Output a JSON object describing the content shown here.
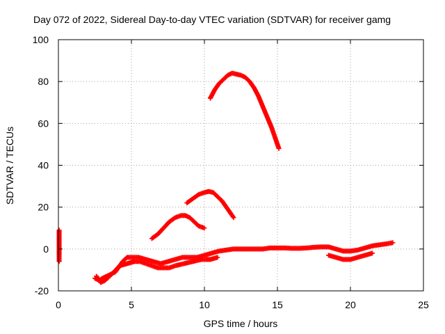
{
  "chart_data": {
    "type": "scatter",
    "title": "Day 072 of 2022, Sidereal Day-to-day VTEC variation (SDTVAR) for receiver gamg",
    "xlabel": "GPS time / hours",
    "ylabel": "SDTVAR / TECUs",
    "xlim": [
      0,
      25
    ],
    "ylim": [
      -20,
      100
    ],
    "xticks": [
      0,
      5,
      10,
      15,
      20,
      25
    ],
    "yticks": [
      -20,
      0,
      20,
      40,
      60,
      80,
      100
    ],
    "grid": true,
    "marker": "plus",
    "colors": {
      "series": "#ff0000",
      "grid": "#a0a0a0",
      "frame": "#000000"
    },
    "series": [
      {
        "name": "start-points",
        "x": [
          0.05,
          0.05,
          0.05,
          0.05
        ],
        "y": [
          9,
          -4,
          -5,
          -6
        ]
      },
      {
        "name": "arc-main-low",
        "x": [
          2.5,
          2.8,
          3.0,
          3.3,
          3.6,
          3.9,
          4.1,
          4.4,
          4.7,
          5.0,
          5.5,
          6.0,
          6.5,
          7.0,
          7.5,
          8.0,
          8.5,
          9.0,
          9.5,
          10.0,
          10.5,
          11.0,
          11.5,
          12.0,
          12.5,
          13.0,
          13.5,
          14.0,
          14.5,
          15.0,
          15.5,
          16.0,
          16.5,
          17.0,
          17.5,
          18.0,
          18.5,
          19.0,
          19.5,
          20.0,
          20.5,
          21.0,
          21.5,
          22.0,
          22.5,
          22.9
        ],
        "y": [
          -14,
          -15,
          -14,
          -13,
          -12,
          -11,
          -9,
          -6,
          -4,
          -4,
          -4,
          -5,
          -6,
          -7,
          -6,
          -5,
          -4,
          -4,
          -4,
          -3,
          -2,
          -1,
          -0.5,
          0,
          0,
          0,
          0,
          0,
          0.5,
          0.5,
          0.5,
          0.3,
          0.3,
          0.5,
          0.8,
          1,
          1,
          0,
          -1,
          -1,
          -0.5,
          0.5,
          1.5,
          2,
          2.5,
          3
        ]
      },
      {
        "name": "arc-main-spread",
        "x": [
          2.6,
          2.9,
          3.2,
          3.5,
          3.8,
          4.2,
          5.2,
          5.6,
          6.0,
          6.4,
          6.8,
          7.2,
          7.6,
          8.0,
          8.6,
          9.2,
          9.8,
          10.4,
          10.9,
          18.5,
          19.0,
          19.5,
          20.0,
          20.5,
          21.0,
          21.5
        ],
        "y": [
          -13,
          -16,
          -15,
          -13,
          -11,
          -8,
          -6,
          -6,
          -7,
          -8,
          -9,
          -9,
          -9,
          -8,
          -7,
          -6,
          -5,
          -5,
          -4,
          -3,
          -4,
          -5,
          -5,
          -4,
          -3,
          -2
        ]
      },
      {
        "name": "arc-peak-16",
        "x": [
          6.4,
          6.8,
          7.2,
          7.6,
          8.0,
          8.4,
          8.7,
          9.0,
          9.3,
          9.6,
          10.0
        ],
        "y": [
          5,
          7,
          10,
          13,
          15,
          16,
          16,
          15,
          13,
          11,
          10
        ]
      },
      {
        "name": "arc-peak-27",
        "x": [
          8.8,
          9.2,
          9.6,
          10.0,
          10.3,
          10.6,
          10.9,
          11.2,
          11.5,
          11.8,
          12.0
        ],
        "y": [
          22,
          24,
          26,
          27,
          27.5,
          27,
          25,
          23,
          20,
          17,
          15
        ]
      },
      {
        "name": "arc-peak-84",
        "x": [
          10.4,
          10.7,
          11.0,
          11.3,
          11.6,
          11.9,
          12.2,
          12.5,
          12.8,
          13.1,
          13.4,
          13.7,
          14.0,
          14.3,
          14.6,
          14.9,
          15.1
        ],
        "y": [
          72,
          76,
          79,
          81,
          83,
          84,
          83.5,
          83,
          82,
          80,
          77,
          73,
          68,
          63,
          58,
          52,
          48
        ]
      }
    ]
  }
}
